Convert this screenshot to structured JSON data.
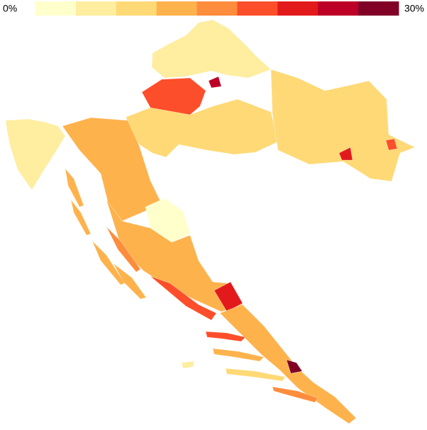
{
  "legend": {
    "min": {
      "value": 0,
      "label": "0%"
    },
    "max": {
      "value": 30,
      "label": "30%"
    },
    "colors": [
      "#ffffcc",
      "#ffeda0",
      "#fed976",
      "#feb24c",
      "#fd8d3c",
      "#fc4e2a",
      "#e31a1c",
      "#bd0026",
      "#800026"
    ]
  },
  "region_values": [
    5,
    6,
    18,
    9,
    7,
    11,
    2,
    12,
    18,
    21,
    13,
    28,
    26,
    21,
    19,
    11,
    12,
    16,
    11,
    13,
    19,
    12,
    9,
    5,
    15
  ]
}
